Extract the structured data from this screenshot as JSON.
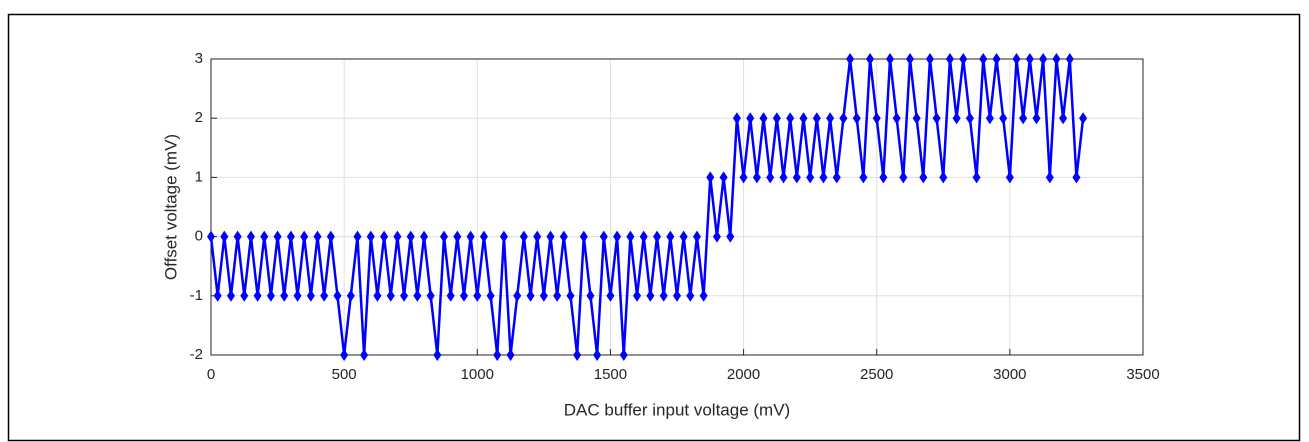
{
  "chart_data": {
    "type": "line",
    "xlabel": "DAC buffer input voltage (mV)",
    "ylabel": "Offset voltage (mV)",
    "xlim": [
      0,
      3500
    ],
    "xticks": [
      0,
      500,
      1000,
      1500,
      2000,
      2500,
      3000,
      3500
    ],
    "ylim": [
      -2,
      3
    ],
    "yticks": [
      -2,
      -1,
      0,
      1,
      2,
      3
    ],
    "grid": true,
    "x": [
      0,
      25,
      50,
      75,
      100,
      125,
      150,
      175,
      200,
      225,
      250,
      275,
      300,
      325,
      350,
      375,
      400,
      425,
      450,
      475,
      500,
      525,
      550,
      575,
      600,
      625,
      650,
      675,
      700,
      725,
      750,
      775,
      800,
      825,
      850,
      875,
      900,
      925,
      950,
      975,
      1000,
      1025,
      1050,
      1075,
      1100,
      1125,
      1150,
      1175,
      1200,
      1225,
      1250,
      1275,
      1300,
      1325,
      1350,
      1375,
      1400,
      1425,
      1450,
      1475,
      1500,
      1525,
      1550,
      1575,
      1600,
      1625,
      1650,
      1675,
      1700,
      1725,
      1750,
      1775,
      1800,
      1825,
      1850,
      1875,
      1900,
      1925,
      1950,
      1975,
      2000,
      2025,
      2050,
      2075,
      2100,
      2125,
      2150,
      2175,
      2200,
      2225,
      2250,
      2275,
      2300,
      2325,
      2350,
      2375,
      2400,
      2425,
      2450,
      2475,
      2500,
      2525,
      2550,
      2575,
      2600,
      2625,
      2650,
      2675,
      2700,
      2725,
      2750,
      2775,
      2800,
      2825,
      2850,
      2875,
      2900,
      2925,
      2950,
      2975,
      3000,
      3025,
      3050,
      3075,
      3100,
      3125,
      3150,
      3175,
      3200,
      3225,
      3250,
      3275
    ],
    "series": [
      {
        "color": "#0000ff",
        "values": [
          0,
          -1,
          0,
          -1,
          0,
          -1,
          0,
          -1,
          0,
          -1,
          0,
          -1,
          0,
          -1,
          0,
          -1,
          0,
          -1,
          0,
          -1,
          -2,
          -1,
          0,
          -2,
          0,
          -1,
          0,
          -1,
          0,
          -1,
          0,
          -1,
          0,
          -1,
          -2,
          0,
          -1,
          0,
          -1,
          0,
          -1,
          0,
          -1,
          -2,
          0,
          -2,
          -1,
          0,
          -1,
          0,
          -1,
          0,
          -1,
          0,
          -1,
          -2,
          0,
          -1,
          -2,
          0,
          -1,
          0,
          -2,
          0,
          -1,
          0,
          -1,
          0,
          -1,
          0,
          -1,
          0,
          -1,
          0,
          -1,
          1,
          0,
          1,
          0,
          2,
          1,
          2,
          1,
          2,
          1,
          2,
          1,
          2,
          1,
          2,
          1,
          2,
          1,
          2,
          1,
          2,
          3,
          2,
          1,
          3,
          2,
          1,
          3,
          2,
          1,
          3,
          2,
          1,
          3,
          2,
          1,
          3,
          2,
          3,
          2,
          1,
          3,
          2,
          3,
          2,
          1,
          3,
          2,
          3,
          2,
          3,
          1,
          3,
          2,
          3,
          1,
          2
        ]
      }
    ]
  }
}
